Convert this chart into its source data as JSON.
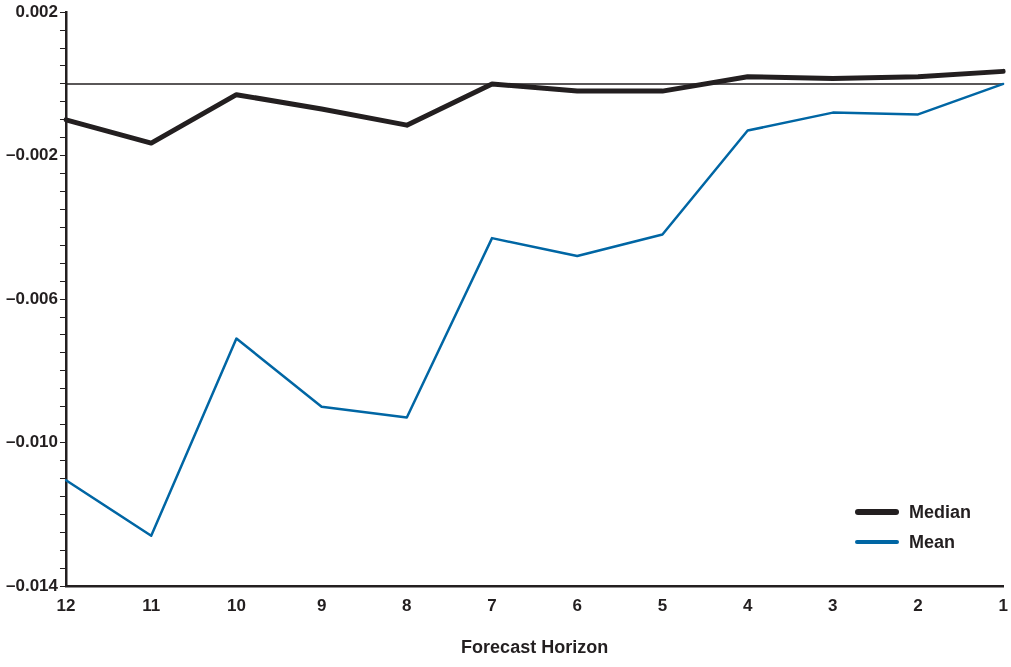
{
  "chart_data": {
    "type": "line",
    "xlabel": "Forecast Horizon",
    "categories": [
      "12",
      "11",
      "10",
      "9",
      "8",
      "7",
      "6",
      "5",
      "4",
      "3",
      "2",
      "1"
    ],
    "series": [
      {
        "name": "Median",
        "color": "#231f20",
        "values": [
          -0.001,
          -0.00165,
          -0.0003,
          -0.0007,
          -0.00115,
          0,
          -0.0002,
          -0.0002,
          0.0002,
          0.00015,
          0.0002,
          0.00035
        ]
      },
      {
        "name": "Mean",
        "color": "#0066a4",
        "values": [
          -0.01105,
          -0.0126,
          -0.0071,
          -0.009,
          -0.0093,
          -0.0043,
          -0.0048,
          -0.0042,
          -0.0013,
          -0.0008,
          -0.00085,
          0
        ]
      }
    ],
    "ylim": [
      -0.014,
      0.002
    ],
    "yticks": [
      0.002,
      {
        "value": 0.0015,
        "label": null
      },
      {
        "value": 0.001,
        "label": null
      },
      {
        "value": 0.0005,
        "label": null
      },
      {
        "value": 0,
        "label": null
      },
      {
        "value": -0.0005,
        "label": null
      },
      {
        "value": -0.001,
        "label": null
      },
      {
        "value": -0.0015,
        "label": null
      },
      {
        "value": -0.002,
        "label": "–0.002"
      },
      {
        "value": -0.0025,
        "label": null
      },
      {
        "value": -0.003,
        "label": null
      },
      {
        "value": -0.0035,
        "label": null
      },
      {
        "value": -0.004,
        "label": null
      },
      {
        "value": -0.0045,
        "label": null
      },
      {
        "value": -0.005,
        "label": null
      },
      {
        "value": -0.0055,
        "label": null
      },
      {
        "value": -0.006,
        "label": "–0.006"
      },
      {
        "value": -0.0065,
        "label": null
      },
      {
        "value": -0.007,
        "label": null
      },
      {
        "value": -0.0075,
        "label": null
      },
      {
        "value": -0.008,
        "label": null
      },
      {
        "value": -0.0085,
        "label": null
      },
      {
        "value": -0.009,
        "label": null
      },
      {
        "value": -0.0095,
        "label": null
      },
      {
        "value": -0.01,
        "label": "–0.010"
      },
      {
        "value": -0.0105,
        "label": null
      },
      {
        "value": -0.011,
        "label": null
      },
      {
        "value": -0.0115,
        "label": null
      },
      {
        "value": -0.012,
        "label": null
      },
      {
        "value": -0.0125,
        "label": null
      },
      {
        "value": -0.013,
        "label": null
      },
      {
        "value": -0.0135,
        "label": null
      },
      {
        "value": -0.014,
        "label": "–0.014"
      }
    ],
    "ref_lines": [
      {
        "axis": "y",
        "value": 0,
        "color": "#231f20"
      }
    ],
    "grid": false,
    "legend": "bottom right",
    "marker": "none",
    "line_style": "solid"
  }
}
